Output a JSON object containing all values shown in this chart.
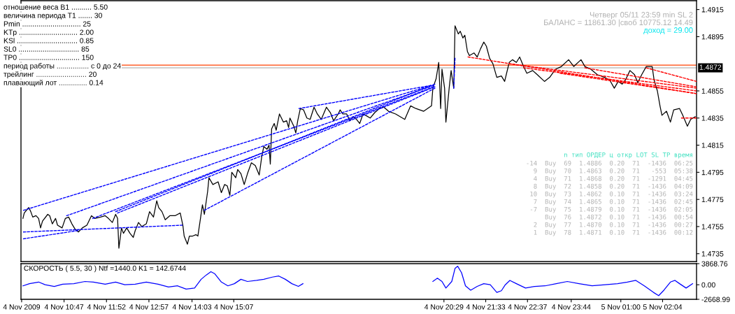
{
  "chart_data": [
    {
      "type": "line",
      "xlim": [
        "2009-11-04T09:41",
        "2009-11-05T02:56"
      ],
      "ylim": [
        1.47292,
        1.49215
      ],
      "tick_labels": "y",
      "yticks": [
        1.4735,
        1.4755,
        1.4775,
        1.4795,
        1.4815,
        1.4835,
        1.4855,
        1.4895,
        1.4915
      ],
      "ref_lines": [
        {
          "axis": "y",
          "value": 1.4874,
          "color": "#ff4000"
        },
        {
          "axis": "y",
          "value": 1.4872,
          "label": "1.4872",
          "color": "#c0c0c0"
        }
      ],
      "series": [
        {
          "color": "#000000",
          "x": [
            "2009-11-04T09:44",
            "2009-11-04T09:46",
            "2009-11-04T09:51",
            "2009-11-04T09:53",
            "2009-11-04T09:56",
            "2009-11-04T09:59",
            "2009-11-04T10:04",
            "2009-11-04T10:08",
            "2009-11-04T10:11",
            "2009-11-04T10:14",
            "2009-11-04T10:22",
            "2009-11-04T10:25",
            "2009-11-04T10:29",
            "2009-11-04T10:34",
            "2009-11-04T10:37",
            "2009-11-04T10:44",
            "2009-11-04T10:49",
            "2009-11-04T10:54",
            "2009-11-04T10:59",
            "2009-11-04T11:04",
            "2009-11-04T11:09",
            "2009-11-04T11:15",
            "2009-11-04T11:22",
            "2009-11-04T11:29",
            "2009-11-04T11:34",
            "2009-11-04T11:43",
            "2009-11-04T11:50",
            "2009-11-04T11:55",
            "2009-11-04T12:01",
            "2009-11-04T12:06",
            "2009-11-04T12:09",
            "2009-11-04T12:11",
            "2009-11-04T12:15",
            "2009-11-04T12:18",
            "2009-11-04T12:23",
            "2009-11-04T12:28",
            "2009-11-04T12:33",
            "2009-11-04T12:36",
            "2009-11-04T12:41",
            "2009-11-04T12:46",
            "2009-11-04T12:53",
            "2009-11-04T12:58",
            "2009-11-04T13:04",
            "2009-11-04T13:09",
            "2009-11-04T13:12",
            "2009-11-04T13:17",
            "2009-11-04T13:22",
            "2009-11-04T13:29",
            "2009-11-04T13:37",
            "2009-11-04T13:45",
            "2009-11-04T13:49",
            "2009-11-04T13:51",
            "2009-11-04T13:56",
            "2009-11-04T13:59",
            "2009-11-04T14:04",
            "2009-11-04T14:09",
            "2009-11-04T14:12",
            "2009-11-04T14:16",
            "2009-11-04T14:19",
            "2009-11-04T14:22",
            "2009-11-04T14:27",
            "2009-11-04T14:29",
            "2009-11-04T14:35",
            "2009-11-04T14:43",
            "2009-11-04T14:48",
            "2009-11-04T14:53",
            "2009-11-04T14:57",
            "2009-11-04T15:01",
            "2009-11-04T15:04",
            "2009-11-04T15:10",
            "2009-11-04T15:13",
            "2009-11-04T15:18",
            "2009-11-04T15:23",
            "2009-11-04T15:28",
            "2009-11-04T15:34",
            "2009-11-04T15:40",
            "2009-11-04T15:46",
            "2009-11-04T15:50",
            "2009-11-04T15:53",
            "2009-11-04T15:58",
            "2009-11-04T16:01",
            "2009-11-04T16:03",
            "2009-11-04T16:05",
            "2009-11-04T16:09",
            "2009-11-04T16:12",
            "2009-11-04T16:17",
            "2009-11-04T16:23",
            "2009-11-04T16:28",
            "2009-11-04T16:31",
            "2009-11-04T16:33",
            "2009-11-04T16:39",
            "2009-11-04T16:42",
            "2009-11-04T16:45",
            "2009-11-04T16:49",
            "2009-11-04T16:54",
            "2009-11-04T16:59",
            "2009-11-04T17:04",
            "2009-11-04T17:10",
            "2009-11-04T17:15",
            "2009-11-04T17:21",
            "2009-11-04T17:29",
            "2009-11-04T17:35",
            "2009-11-04T17:40",
            "2009-11-04T17:47",
            "2009-11-04T17:50",
            "2009-11-04T17:54",
            "2009-11-04T18:00",
            "2009-11-04T18:05",
            "2009-11-04T18:10",
            "2009-11-04T18:15",
            "2009-11-04T18:20",
            "2009-11-04T18:25",
            "2009-11-04T18:29",
            "2009-11-04T18:36",
            "2009-11-04T18:43",
            "2009-11-04T18:50",
            "2009-11-04T18:57",
            "2009-11-04T19:04",
            "2009-11-04T19:15",
            "2009-11-04T19:29",
            "2009-11-04T19:38",
            "2009-11-04T19:46",
            "2009-11-04T19:58",
            "2009-11-04T20:10",
            "2009-11-04T20:12",
            "2009-11-04T20:17",
            "2009-11-04T20:21",
            "2009-11-04T20:24",
            "2009-11-04T20:26",
            "2009-11-04T20:30",
            "2009-11-04T20:32",
            "2009-11-04T20:37",
            "2009-11-04T20:40",
            "2009-11-04T20:44",
            "2009-11-04T20:45",
            "2009-11-04T20:46",
            "2009-11-04T20:51",
            "2009-11-04T20:54",
            "2009-11-04T20:58",
            "2009-11-04T21:01",
            "2009-11-04T21:05",
            "2009-11-04T21:08",
            "2009-11-04T21:15",
            "2009-11-04T21:20",
            "2009-11-04T21:25",
            "2009-11-04T21:30",
            "2009-11-04T21:34",
            "2009-11-04T21:39",
            "2009-11-04T21:44",
            "2009-11-04T21:50",
            "2009-11-04T21:57",
            "2009-11-04T22:02",
            "2009-11-04T22:09",
            "2009-11-04T22:14",
            "2009-11-04T22:20",
            "2009-11-04T22:25",
            "2009-11-04T22:31",
            "2009-11-04T22:36",
            "2009-11-04T22:45",
            "2009-11-04T22:52",
            "2009-11-04T23:03",
            "2009-11-04T23:11",
            "2009-11-04T23:20",
            "2009-11-04T23:29",
            "2009-11-04T23:40",
            "2009-11-04T23:48",
            "2009-11-04T23:59",
            "2009-11-05T00:05",
            "2009-11-05T00:14",
            "2009-11-05T00:24",
            "2009-11-05T00:35",
            "2009-11-05T00:43",
            "2009-11-05T00:50",
            "2009-11-05T00:56",
            "2009-11-05T01:02",
            "2009-11-05T01:07",
            "2009-11-05T01:14",
            "2009-11-05T01:21",
            "2009-11-05T01:26",
            "2009-11-05T01:32",
            "2009-11-05T01:39",
            "2009-11-05T01:48",
            "2009-11-05T01:51",
            "2009-11-05T01:56",
            "2009-11-05T02:00",
            "2009-11-05T02:03",
            "2009-11-05T02:10",
            "2009-11-05T02:16",
            "2009-11-05T02:21",
            "2009-11-05T02:30",
            "2009-11-05T02:35",
            "2009-11-05T02:42",
            "2009-11-05T02:47",
            "2009-11-05T02:54"
          ],
          "values": [
            1.4761,
            1.4765,
            1.4768,
            1.4769,
            1.4766,
            1.4762,
            1.4763,
            1.4761,
            1.4754,
            1.4759,
            1.4764,
            1.4763,
            1.4757,
            1.4761,
            1.4756,
            1.4754,
            1.4761,
            1.4762,
            1.4757,
            1.4753,
            1.4751,
            1.4754,
            1.4756,
            1.4763,
            1.4761,
            1.4762,
            1.4763,
            1.4761,
            1.4758,
            1.4764,
            1.4761,
            1.4739,
            1.4754,
            1.475,
            1.4754,
            1.475,
            1.4747,
            1.4752,
            1.4758,
            1.4755,
            1.4757,
            1.4766,
            1.4762,
            1.4774,
            1.4769,
            1.4766,
            1.476,
            1.4763,
            1.4763,
            1.4765,
            1.4756,
            1.4748,
            1.4742,
            1.4748,
            1.4748,
            1.4749,
            1.4748,
            1.4761,
            1.4771,
            1.4764,
            1.4781,
            1.4791,
            1.4786,
            1.4788,
            1.478,
            1.4786,
            1.4785,
            1.4778,
            1.4795,
            1.4791,
            1.4797,
            1.4794,
            1.4786,
            1.4794,
            1.4802,
            1.48,
            1.4793,
            1.4807,
            1.4814,
            1.4812,
            1.4815,
            1.4801,
            1.4827,
            1.4831,
            1.4826,
            1.4838,
            1.4832,
            1.4833,
            1.4828,
            1.4835,
            1.4829,
            1.4824,
            1.4833,
            1.4842,
            1.4841,
            1.4835,
            1.4834,
            1.4843,
            1.4838,
            1.4834,
            1.4843,
            1.4839,
            1.4833,
            1.4838,
            1.4841,
            1.4838,
            1.4838,
            1.4833,
            1.4836,
            1.4834,
            1.4831,
            1.4838,
            1.4837,
            1.4835,
            1.4839,
            1.4842,
            1.4843,
            1.484,
            1.4838,
            1.4834,
            1.4844,
            1.4842,
            1.484,
            1.4844,
            1.4857,
            1.4864,
            1.4876,
            1.4842,
            1.4871,
            1.4857,
            1.4832,
            1.4857,
            1.487,
            1.4857,
            1.4879,
            1.4903,
            1.4897,
            1.4899,
            1.4894,
            1.4896,
            1.4884,
            1.4881,
            1.4883,
            1.488,
            1.4886,
            1.4891,
            1.4888,
            1.4879,
            1.4875,
            1.4865,
            1.4866,
            1.4862,
            1.4876,
            1.4878,
            1.4876,
            1.488,
            1.4873,
            1.4868,
            1.487,
            1.4867,
            1.4862,
            1.4865,
            1.4871,
            1.4873,
            1.4878,
            1.4873,
            1.4878,
            1.4873,
            1.4871,
            1.4867,
            1.4865,
            1.4863,
            1.4857,
            1.4862,
            1.486,
            1.4863,
            1.487,
            1.4867,
            1.4861,
            1.4867,
            1.4873,
            1.4873,
            1.4863,
            1.4855,
            1.4844,
            1.4837,
            1.484,
            1.4832,
            1.4841,
            1.4842,
            1.4837,
            1.4829,
            1.4834,
            1.4836
          ]
        },
        {
          "color": "#0000ff",
          "line_style": "dashed",
          "x": [
            "2009-11-04T09:45",
            "2009-11-04T20:09"
          ],
          "values": [
            1.4767,
            1.4859
          ]
        },
        {
          "color": "#0000ff",
          "line_style": "dashed",
          "x": [
            "2009-11-04T10:51",
            "2009-11-04T20:13"
          ],
          "values": [
            1.4763,
            1.4859
          ]
        },
        {
          "color": "#0000ff",
          "line_style": "dashed",
          "x": [
            "2009-11-04T11:31",
            "2009-11-04T20:13"
          ],
          "values": [
            1.4761,
            1.4858
          ]
        },
        {
          "color": "#0000ff",
          "line_style": "dashed",
          "x": [
            "2009-11-04T12:06",
            "2009-11-04T20:15"
          ],
          "values": [
            1.4766,
            1.486
          ]
        },
        {
          "color": "#0000ff",
          "line_style": "dashed",
          "x": [
            "2009-11-04T12:09",
            "2009-11-04T20:15"
          ],
          "values": [
            1.4765,
            1.4858
          ]
        },
        {
          "color": "#0000ff",
          "line_style": "dashed",
          "x": [
            "2009-11-04T14:22",
            "2009-11-04T20:15"
          ],
          "values": [
            1.4767,
            1.4857
          ]
        },
        {
          "color": "#0000ff",
          "line_style": "dashed",
          "x": [
            "2009-11-04T16:47",
            "2009-11-04T20:09"
          ],
          "values": [
            1.4842,
            1.4859
          ]
        },
        {
          "color": "#0000ff",
          "line_style": "dashed",
          "x": [
            "2009-11-04T09:45",
            "2009-11-04T13:48"
          ],
          "values": [
            1.4751,
            1.4756
          ]
        },
        {
          "color": "#0000ff",
          "line_style": "dashed",
          "x": [
            "2009-11-04T09:45",
            "2009-11-04T11:08"
          ],
          "values": [
            1.4746,
            1.4752
          ]
        },
        {
          "color": "#0000ff",
          "line_style": "dashed",
          "x": [
            "2009-11-04T20:44",
            "2009-11-04T20:46"
          ],
          "values": [
            1.4857,
            1.4879
          ]
        },
        {
          "color": "#ff0000",
          "line_style": "dashed",
          "x": [
            "2009-11-04T21:06",
            "2009-11-05T02:56"
          ],
          "values": [
            1.488,
            1.4853
          ]
        },
        {
          "color": "#ff0000",
          "line_style": "dashed",
          "x": [
            "2009-11-04T22:09",
            "2009-11-05T02:56"
          ],
          "values": [
            1.4875,
            1.4857
          ]
        },
        {
          "color": "#ff0000",
          "line_style": "dashed",
          "x": [
            "2009-11-04T22:31",
            "2009-11-05T02:56"
          ],
          "values": [
            1.4872,
            1.4855
          ]
        },
        {
          "color": "#ff0000",
          "line_style": "dashed",
          "x": [
            "2009-11-04T23:27",
            "2009-11-05T02:56"
          ],
          "values": [
            1.4868,
            1.4853
          ]
        },
        {
          "color": "#ff0000",
          "line_style": "dashed",
          "x": [
            "2009-11-05T00:05",
            "2009-11-05T02:56"
          ],
          "values": [
            1.4872,
            1.4858
          ]
        },
        {
          "color": "#ff0000",
          "line_style": "dashed",
          "x": [
            "2009-11-05T01:39",
            "2009-11-05T02:56"
          ],
          "values": [
            1.4872,
            1.4862
          ]
        },
        {
          "color": "#ff0000",
          "line_style": "dashed",
          "x": [
            "2009-11-05T02:33",
            "2009-11-05T02:56"
          ],
          "values": [
            1.4835,
            1.4835
          ]
        }
      ],
      "annotations": [
        "отношение веса B1 .......... 5.50",
        "величина периода T1 ....... 30",
        "Pmin ............................. 25",
        "KTp ............................. 2.00",
        "KSl .............................. 0.85",
        "SL0 .............................. 85",
        "TP0 .............................. 150",
        "период работы ................ с 0 до 24",
        "трейлинг ......................... 20",
        "плавающий лот .............. 0.14",
        "Четверг 05/11 23:59 min SL 2",
        "БАЛАНС = 11861.30 |своб 10775.12 14.49",
        "доход = 29.00",
        "n тип ОРДЕР ц откр LOT SL TP время",
        "-14 Buy 69 1.4886 0.20 71 -1436 06:25",
        "9 Buy 70 1.4863 0.20 71 -553 05:38",
        "4 Buy 71 1.4868 0.20 71 -1291 04:45",
        "8 Buy 72 1.4858 0.20 71 -1436 04:09",
        "10 Buy 73 1.4862 0.10 71 -1436 03:24",
        "7 Buy 74 1.4865 0.10 71 -1436 02:45",
        "-7 Buy 75 1.4879 0.10 71 -1436 02:05",
        "Buy 76 1.4872 0.10 71 -1436 00:54",
        "2 Buy 77 1.4870 0.10 71 -1436 00:27",
        "1 Buy 78 1.4871 0.10 71 -1436 00:12"
      ]
    },
    {
      "type": "line",
      "title": "СКОРОСТЬ ( 5.5, 30 ) Ntf =1440.0 K1 = 142.6744",
      "xlim": [
        "2009-11-04T09:41",
        "2009-11-05T02:56"
      ],
      "xticks": [
        {
          "value": "2009-11-04T09:42",
          "label": "4 Nov 2009"
        },
        {
          "value": "2009-11-04T10:47",
          "label": "4 Nov 10:47"
        },
        {
          "value": "2009-11-04T11:52",
          "label": "4 Nov 11:52"
        },
        {
          "value": "2009-11-04T12:57",
          "label": "4 Nov 12:57"
        },
        {
          "value": "2009-11-04T14:03",
          "label": "4 Nov 14:03"
        },
        {
          "value": "2009-11-04T15:07",
          "label": "4 Nov 15:07"
        },
        {
          "value": "2009-11-04T20:29",
          "label": "4 Nov 20:29"
        },
        {
          "value": "2009-11-04T21:33",
          "label": "4 Nov 21:33"
        },
        {
          "value": "2009-11-04T22:37",
          "label": "4 Nov 22:37"
        },
        {
          "value": "2009-11-04T23:44",
          "label": "4 Nov 23:44"
        },
        {
          "value": "2009-11-05T01:00",
          "label": "5 Nov 01:00"
        },
        {
          "value": "2009-11-05T02:04",
          "label": "5 Nov 02:04"
        }
      ],
      "ylim": [
        -2668.99,
        3868.76
      ],
      "yticks": [
        {
          "value": 3868.76,
          "label": "3868.76"
        },
        {
          "value": 0,
          "label": "0.00"
        },
        {
          "value": -2668.99,
          "label": "-2668.99"
        }
      ],
      "series": [
        {
          "color": "#0000ff",
          "x": [
            "2009-11-04T09:44",
            "2009-11-04T09:54",
            "2009-11-04T10:08",
            "2009-11-04T10:18",
            "2009-11-04T10:32",
            "2009-11-04T10:45",
            "2009-11-04T11:02",
            "2009-11-04T11:19",
            "2009-11-04T11:32",
            "2009-11-04T11:50",
            "2009-11-04T12:06",
            "2009-11-04T12:20",
            "2009-11-04T12:36",
            "2009-11-04T12:53",
            "2009-11-04T13:11",
            "2009-11-04T13:27",
            "2009-11-04T13:41",
            "2009-11-04T13:54",
            "2009-11-04T14:07",
            "2009-11-04T14:17",
            "2009-11-04T14:25",
            "2009-11-04T14:32",
            "2009-11-04T14:38",
            "2009-11-04T14:48",
            "2009-11-04T14:58",
            "2009-11-04T15:08",
            "2009-11-04T15:18",
            "2009-11-04T15:28",
            "2009-11-04T15:42",
            "2009-11-04T15:53",
            "2009-11-04T16:06",
            "2009-11-04T16:16",
            "2009-11-04T16:26",
            "2009-11-04T16:36",
            "2009-11-04T16:46",
            "2009-11-04T16:53",
            "2009-11-04T18:33",
            "2009-11-04T20:12",
            "2009-11-04T20:19",
            "2009-11-04T20:26",
            "2009-11-04T20:32",
            "2009-11-04T20:41",
            "2009-11-04T20:46",
            "2009-11-04T20:50",
            "2009-11-04T20:56",
            "2009-11-04T21:02",
            "2009-11-04T21:10",
            "2009-11-04T21:20",
            "2009-11-04T21:30",
            "2009-11-04T21:40",
            "2009-11-04T21:50",
            "2009-11-04T21:57",
            "2009-11-04T22:03",
            "2009-11-04T22:10",
            "2009-11-04T22:20",
            "2009-11-04T22:34",
            "2009-11-04T22:48",
            "2009-11-04T23:04",
            "2009-11-04T23:21",
            "2009-11-04T23:38",
            "2009-11-04T23:56",
            "2009-11-05T00:16",
            "2009-11-05T00:36",
            "2009-11-05T00:55",
            "2009-11-05T01:10",
            "2009-11-05T01:23",
            "2009-11-05T01:36",
            "2009-11-05T01:50",
            "2009-11-05T01:58",
            "2009-11-05T02:06",
            "2009-11-05T02:16",
            "2009-11-05T02:23",
            "2009-11-05T02:30",
            "2009-11-05T02:40",
            "2009-11-05T02:50"
          ],
          "values": [
            -200,
            200,
            500,
            0,
            -300,
            100,
            200,
            600,
            500,
            100,
            500,
            0,
            100,
            500,
            100,
            -400,
            -200,
            -800,
            -600,
            1000,
            1800,
            2400,
            2000,
            500,
            -200,
            200,
            1000,
            600,
            800,
            1000,
            1400,
            1600,
            1000,
            200,
            -300,
            200,
            null,
            600,
            1200,
            600,
            -600,
            600,
            3000,
            3400,
            2200,
            -200,
            -1000,
            -300,
            200,
            0,
            -1400,
            -1100,
            0,
            800,
            200,
            -600,
            -300,
            -200,
            200,
            600,
            200,
            -200,
            0,
            200,
            500,
            800,
            -200,
            -1400,
            -2000,
            -1000,
            500,
            800,
            200,
            -600,
            200
          ]
        }
      ]
    }
  ]
}
